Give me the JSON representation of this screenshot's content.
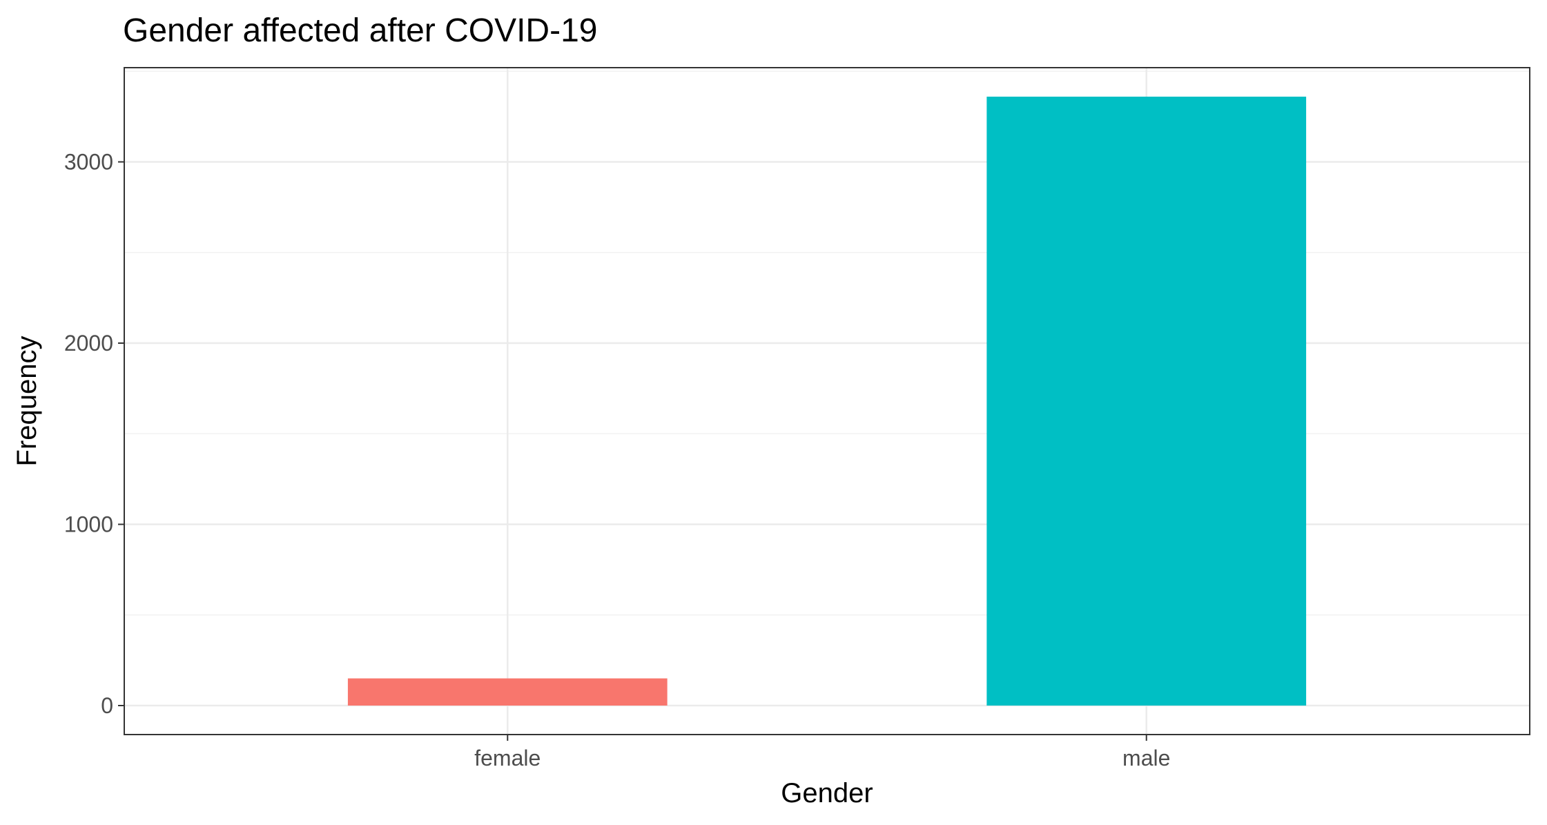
{
  "chart_data": {
    "type": "bar",
    "title": "Gender affected after COVID-19",
    "xlabel": "Gender",
    "ylabel": "Frequency",
    "categories": [
      "female",
      "male"
    ],
    "values": [
      150,
      3360
    ],
    "colors": [
      "#F8766D",
      "#00BFC4"
    ],
    "ylim": [
      -160,
      3520
    ],
    "yticks": [
      0,
      1000,
      2000,
      3000
    ],
    "ytick_labels": [
      "0",
      "1000",
      "2000",
      "3000"
    ],
    "grid": true,
    "legend": "none"
  },
  "colors": {
    "background": "#ffffff",
    "panel_border": "#333333",
    "grid_major": "#ebebeb",
    "grid_minor": "#f2f2f2",
    "tick_text": "#4d4d4d"
  }
}
